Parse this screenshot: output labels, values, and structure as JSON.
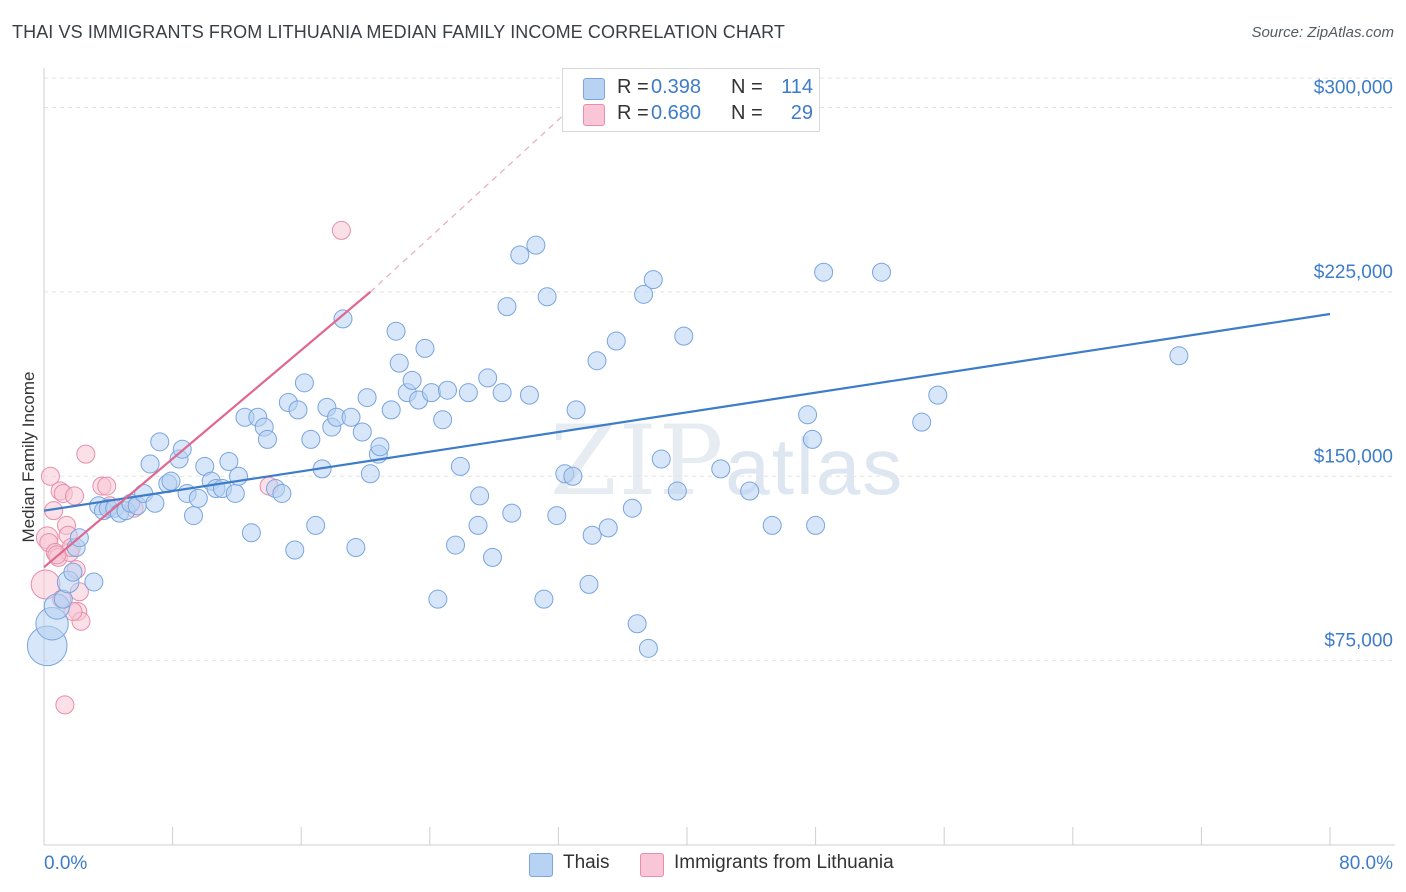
{
  "title": "THAI VS IMMIGRANTS FROM LITHUANIA MEDIAN FAMILY INCOME CORRELATION CHART",
  "source": "Source: ZipAtlas.com",
  "watermark": {
    "zip": "ZIP",
    "atlas": "atlas"
  },
  "legend": [
    {
      "r_label": "R =",
      "r_value": "0.398",
      "n_label": "N =",
      "n_value": "114",
      "fill": "#b7d2f2",
      "stroke": "#7aa5de"
    },
    {
      "r_label": "R =",
      "r_value": "0.680",
      "n_label": "N =",
      "n_value": "29",
      "fill": "#f8c6d6",
      "stroke": "#e88daa"
    }
  ],
  "bottom_legend": [
    {
      "name": "Thais",
      "fill": "#b7d2f2",
      "stroke": "#7aa5de"
    },
    {
      "name": "Immigrants from Lithuania",
      "fill": "#f8c6d6",
      "stroke": "#e88daa"
    }
  ],
  "chart_data": {
    "type": "scatter",
    "title": "THAI VS IMMIGRANTS FROM LITHUANIA MEDIAN FAMILY INCOME CORRELATION CHART",
    "xlabel": "",
    "ylabel": "Median Family Income",
    "xlim": [
      0,
      80
    ],
    "ylim": [
      0,
      312000
    ],
    "x_tick_labels": [
      {
        "value": 0,
        "label": "0.0%"
      },
      {
        "value": 80,
        "label": "80.0%"
      }
    ],
    "y_ticks": [
      {
        "value": 75000,
        "label": "$75,000"
      },
      {
        "value": 150000,
        "label": "$150,000"
      },
      {
        "value": 225000,
        "label": "$225,000"
      },
      {
        "value": 300000,
        "label": "$300,000"
      }
    ],
    "colors": {
      "thais": "#3d7cc9",
      "lithuania": "#e0678f",
      "axis_label": "#3d7cc9"
    },
    "series": [
      {
        "name": "Thais",
        "trend": {
          "x0": 0,
          "y0": 136000,
          "x1": 80,
          "y1": 216000
        },
        "points": [
          [
            0.2,
            81000,
            2.2
          ],
          [
            0.5,
            90000,
            1.8
          ],
          [
            0.8,
            97000,
            1.4
          ],
          [
            1.2,
            100000,
            1.0
          ],
          [
            1.5,
            107000,
            1.2
          ],
          [
            1.8,
            111000,
            1.0
          ],
          [
            2.0,
            121000,
            1.0
          ],
          [
            2.2,
            125000,
            1.0
          ],
          [
            3.1,
            107000,
            1.0
          ],
          [
            3.4,
            138000,
            1.0
          ],
          [
            3.7,
            136000,
            1.0
          ],
          [
            4.0,
            137000,
            1.0
          ],
          [
            4.4,
            137000,
            1.0
          ],
          [
            4.7,
            135000,
            1.0
          ],
          [
            5.1,
            136000,
            1.0
          ],
          [
            5.4,
            139000,
            1.0
          ],
          [
            5.8,
            138000,
            1.0
          ],
          [
            6.2,
            143000,
            1.0
          ],
          [
            6.6,
            155000,
            1.0
          ],
          [
            6.9,
            139000,
            1.0
          ],
          [
            7.2,
            164000,
            1.0
          ],
          [
            7.7,
            147000,
            1.0
          ],
          [
            7.9,
            148000,
            1.0
          ],
          [
            8.4,
            157000,
            1.0
          ],
          [
            8.6,
            161000,
            1.0
          ],
          [
            8.9,
            143000,
            1.0
          ],
          [
            9.3,
            134000,
            1.0
          ],
          [
            9.6,
            141000,
            1.0
          ],
          [
            10.0,
            154000,
            1.0
          ],
          [
            10.4,
            148000,
            1.0
          ],
          [
            10.7,
            145000,
            1.0
          ],
          [
            11.1,
            145000,
            1.0
          ],
          [
            11.5,
            156000,
            1.0
          ],
          [
            11.9,
            143000,
            1.0
          ],
          [
            12.1,
            150000,
            1.0
          ],
          [
            12.5,
            174000,
            1.0
          ],
          [
            12.9,
            127000,
            1.0
          ],
          [
            13.3,
            174000,
            1.0
          ],
          [
            13.7,
            170000,
            1.0
          ],
          [
            13.9,
            165000,
            1.0
          ],
          [
            14.4,
            145000,
            1.0
          ],
          [
            14.8,
            143000,
            1.0
          ],
          [
            15.2,
            180000,
            1.0
          ],
          [
            15.6,
            120000,
            1.0
          ],
          [
            15.8,
            177000,
            1.0
          ],
          [
            16.2,
            188000,
            1.0
          ],
          [
            16.6,
            165000,
            1.0
          ],
          [
            16.9,
            130000,
            1.0
          ],
          [
            17.3,
            153000,
            1.0
          ],
          [
            17.6,
            178000,
            1.0
          ],
          [
            17.9,
            170000,
            1.0
          ],
          [
            18.2,
            174000,
            1.0
          ],
          [
            18.6,
            214000,
            1.0
          ],
          [
            19.1,
            174000,
            1.0
          ],
          [
            19.4,
            121000,
            1.0
          ],
          [
            19.8,
            168000,
            1.0
          ],
          [
            20.1,
            182000,
            1.0
          ],
          [
            20.3,
            151000,
            1.0
          ],
          [
            20.8,
            159000,
            1.0
          ],
          [
            20.9,
            162000,
            1.0
          ],
          [
            21.6,
            177000,
            1.0
          ],
          [
            21.9,
            209000,
            1.0
          ],
          [
            22.1,
            196000,
            1.0
          ],
          [
            22.6,
            184000,
            1.0
          ],
          [
            22.9,
            189000,
            1.0
          ],
          [
            23.3,
            181000,
            1.0
          ],
          [
            23.7,
            202000,
            1.0
          ],
          [
            24.1,
            184000,
            1.0
          ],
          [
            24.5,
            100000,
            1.0
          ],
          [
            24.8,
            173000,
            1.0
          ],
          [
            25.1,
            185000,
            1.0
          ],
          [
            25.6,
            122000,
            1.0
          ],
          [
            25.9,
            154000,
            1.0
          ],
          [
            26.4,
            184000,
            1.0
          ],
          [
            27.0,
            130000,
            1.0
          ],
          [
            27.1,
            142000,
            1.0
          ],
          [
            27.6,
            190000,
            1.0
          ],
          [
            27.9,
            117000,
            1.0
          ],
          [
            28.5,
            184000,
            1.0
          ],
          [
            28.8,
            219000,
            1.0
          ],
          [
            29.1,
            135000,
            1.0
          ],
          [
            29.6,
            240000,
            1.0
          ],
          [
            30.2,
            183000,
            1.0
          ],
          [
            30.6,
            244000,
            1.0
          ],
          [
            31.1,
            100000,
            1.0
          ],
          [
            31.3,
            223000,
            1.0
          ],
          [
            31.9,
            134000,
            1.0
          ],
          [
            32.4,
            151000,
            1.0
          ],
          [
            32.9,
            150000,
            1.0
          ],
          [
            33.1,
            177000,
            1.0
          ],
          [
            33.9,
            106000,
            1.0
          ],
          [
            34.1,
            126000,
            1.0
          ],
          [
            34.4,
            197000,
            1.0
          ],
          [
            35.1,
            129000,
            1.0
          ],
          [
            35.6,
            205000,
            1.0
          ],
          [
            36.6,
            137000,
            1.0
          ],
          [
            36.9,
            90000,
            1.0
          ],
          [
            37.3,
            224000,
            1.0
          ],
          [
            37.6,
            80000,
            1.0
          ],
          [
            37.9,
            230000,
            1.0
          ],
          [
            38.4,
            157000,
            1.0
          ],
          [
            39.4,
            144000,
            1.0
          ],
          [
            39.8,
            207000,
            1.0
          ],
          [
            42.1,
            153000,
            1.0
          ],
          [
            43.9,
            144000,
            1.0
          ],
          [
            45.3,
            130000,
            1.0
          ],
          [
            47.5,
            175000,
            1.0
          ],
          [
            47.8,
            165000,
            1.0
          ],
          [
            48.0,
            130000,
            1.0
          ],
          [
            48.5,
            233000,
            1.0
          ],
          [
            52.1,
            233000,
            1.0
          ],
          [
            54.6,
            172000,
            1.0
          ],
          [
            55.6,
            183000,
            1.0
          ],
          [
            70.6,
            199000,
            1.0
          ]
        ]
      },
      {
        "name": "Immigrants from Lithuania",
        "trend": {
          "x0": 0,
          "y0": 113000,
          "x1": 20.3,
          "y1": 225000
        },
        "trend_extension": {
          "x0": 20.3,
          "y0": 225000,
          "x1": 32.5,
          "y1": 298000
        },
        "points": [
          [
            0.1,
            106000,
            1.6
          ],
          [
            0.2,
            125000,
            1.2
          ],
          [
            0.3,
            123000,
            1.0
          ],
          [
            0.4,
            150000,
            1.0
          ],
          [
            0.6,
            136000,
            1.0
          ],
          [
            0.7,
            119000,
            1.0
          ],
          [
            0.9,
            117000,
            1.0
          ],
          [
            1.0,
            144000,
            1.0
          ],
          [
            1.1,
            100000,
            1.0
          ],
          [
            1.2,
            143000,
            1.0
          ],
          [
            1.4,
            130000,
            1.0
          ],
          [
            1.5,
            126000,
            1.0
          ],
          [
            1.6,
            119000,
            1.0
          ],
          [
            1.7,
            121000,
            1.0
          ],
          [
            1.9,
            142000,
            1.0
          ],
          [
            2.0,
            112000,
            1.0
          ],
          [
            2.1,
            95000,
            1.0
          ],
          [
            2.2,
            103000,
            1.0
          ],
          [
            2.3,
            91000,
            1.0
          ],
          [
            2.6,
            159000,
            1.0
          ],
          [
            1.3,
            57000,
            1.0
          ],
          [
            3.6,
            146000,
            1.0
          ],
          [
            3.9,
            146000,
            1.0
          ],
          [
            4.1,
            138000,
            1.0
          ],
          [
            5.6,
            137000,
            1.0
          ],
          [
            14.0,
            146000,
            1.0
          ],
          [
            18.5,
            250000,
            1.0
          ],
          [
            1.8,
            95000,
            1.0
          ],
          [
            0.8,
            118000,
            1.0
          ]
        ]
      }
    ]
  }
}
